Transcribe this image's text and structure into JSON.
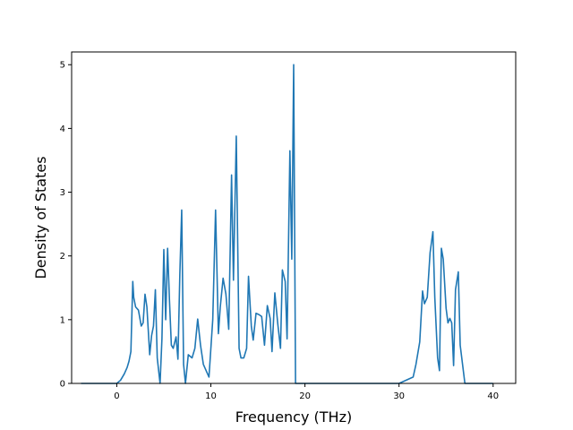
{
  "chart_data": {
    "type": "line",
    "xlabel": "Frequency (THz)",
    "ylabel": "Density of States",
    "xlim": [
      -4.8,
      42.4
    ],
    "ylim": [
      0,
      5.2
    ],
    "x_ticks": [
      0,
      10,
      20,
      30,
      40
    ],
    "x_tick_labels": [
      "0",
      "10",
      "20",
      "30",
      "40"
    ],
    "y_ticks": [
      0,
      1,
      2,
      3,
      4,
      5
    ],
    "y_tick_labels": [
      "0",
      "1",
      "2",
      "3",
      "4",
      "5"
    ],
    "grid": false,
    "colors": {
      "line": "#1f77b4"
    },
    "series": [
      {
        "x": [
          -3.8,
          -3.0,
          -2.0,
          -1.0,
          -0.5,
          0.0,
          0.4,
          0.8,
          1.1,
          1.3,
          1.5,
          1.7,
          1.8,
          2.0,
          2.3,
          2.6,
          2.8,
          3.0,
          3.2,
          3.5,
          3.7,
          3.9,
          4.1,
          4.3,
          4.6,
          4.8,
          5.0,
          5.2,
          5.4,
          5.6,
          5.8,
          6.0,
          6.3,
          6.5,
          6.7,
          6.9,
          7.1,
          7.3,
          7.6,
          8.0,
          8.3,
          8.6,
          8.9,
          9.2,
          9.5,
          9.8,
          10.2,
          10.5,
          10.8,
          11.0,
          11.3,
          11.6,
          11.9,
          12.2,
          12.4,
          12.7,
          13.0,
          13.2,
          13.5,
          13.8,
          14.0,
          14.3,
          14.5,
          14.8,
          15.1,
          15.4,
          15.7,
          16.0,
          16.3,
          16.5,
          16.8,
          17.1,
          17.4,
          17.6,
          17.9,
          18.1,
          18.4,
          18.6,
          18.8,
          19.0,
          19.3,
          20.0,
          25.0,
          30.0,
          31.5,
          31.8,
          32.2,
          32.5,
          32.7,
          33.0,
          33.3,
          33.6,
          33.8,
          34.1,
          34.3,
          34.5,
          34.7,
          35.0,
          35.2,
          35.4,
          35.6,
          35.8,
          36.0,
          36.3,
          36.5,
          37.0,
          37.5,
          40.0
        ],
        "y": [
          0,
          0,
          0,
          0,
          0,
          0,
          0.05,
          0.15,
          0.25,
          0.35,
          0.5,
          1.6,
          1.35,
          1.2,
          1.15,
          0.9,
          0.95,
          1.4,
          1.2,
          0.45,
          0.75,
          0.9,
          1.47,
          0.4,
          0,
          0.7,
          2.1,
          1.0,
          2.12,
          1.3,
          0.6,
          0.55,
          0.73,
          0.38,
          1.7,
          2.72,
          0.3,
          0,
          0.45,
          0.4,
          0.55,
          1.01,
          0.6,
          0.3,
          0.2,
          0.1,
          1.0,
          2.72,
          0.78,
          1.2,
          1.65,
          1.4,
          0.85,
          3.27,
          1.62,
          3.88,
          0.55,
          0.4,
          0.4,
          0.55,
          1.68,
          0.9,
          0.68,
          1.1,
          1.08,
          1.05,
          0.6,
          1.22,
          1.02,
          0.5,
          1.42,
          0.95,
          0.55,
          1.78,
          1.6,
          0.7,
          3.65,
          1.95,
          5.0,
          0,
          0,
          0,
          0,
          0,
          0.1,
          0.3,
          0.65,
          1.45,
          1.25,
          1.35,
          2.05,
          2.38,
          1.35,
          0.4,
          0.2,
          2.12,
          1.95,
          1.18,
          0.95,
          1.02,
          0.95,
          0.28,
          1.47,
          1.75,
          0.6,
          0,
          0,
          0
        ]
      }
    ]
  }
}
